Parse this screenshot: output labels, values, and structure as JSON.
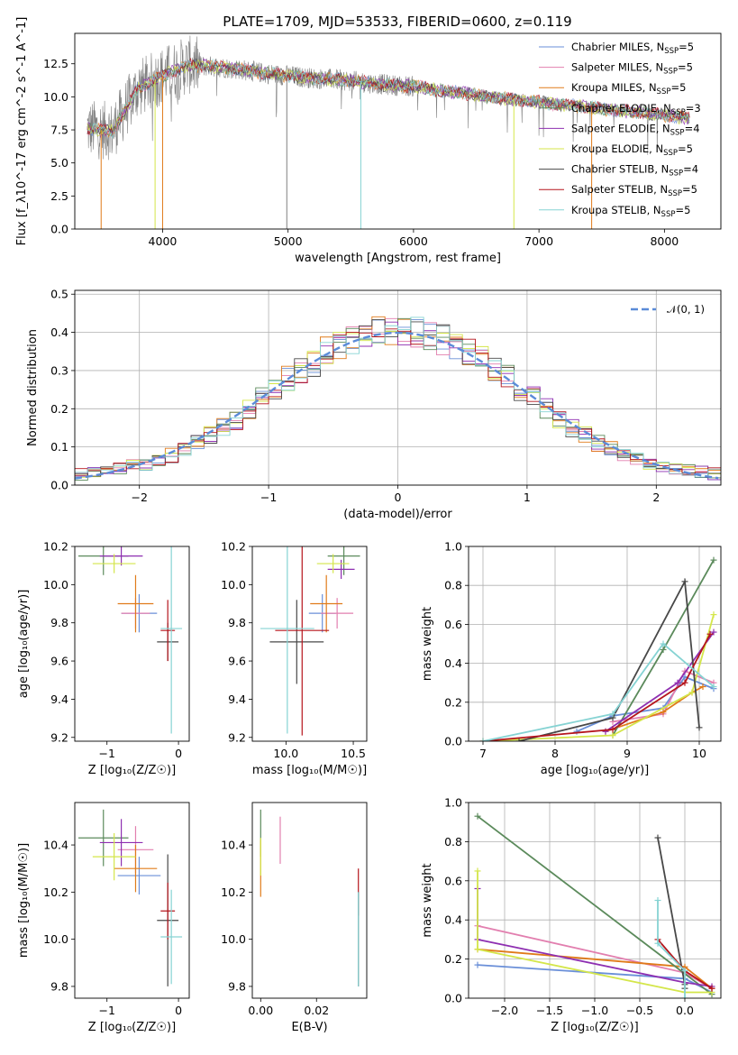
{
  "figure": {
    "title": "PLATE=1709, MJD=53533, FIBERID=0600, z=0.119"
  },
  "colors": {
    "Chabrier MILES": "#6a8fd8",
    "Salpeter MILES": "#e27faf",
    "Kroupa MILES": "#e07b1a",
    "Chabrier ELODIE": "#5b8a5b",
    "Salpeter ELODIE": "#8e2fb1",
    "Kroupa ELODIE": "#d4e64a",
    "Chabrier STELIB": "#484848",
    "Salpeter STELIB": "#b5151c",
    "Kroupa STELIB": "#86d3d3",
    "data": "#808080",
    "normal": "#5b8bd8"
  },
  "chart_data": [
    {
      "id": "spectrum",
      "type": "line",
      "xlabel": "wavelength [Angstrom, rest frame]",
      "ylabel": "Flux [f_λ10^-17 erg cm^-2 s^-1 A^-1]",
      "xlim": [
        3300,
        8450
      ],
      "ylim": [
        0,
        14.8
      ],
      "xticks": [
        4000,
        5000,
        6000,
        7000,
        8000
      ],
      "yticks": [
        0.0,
        2.5,
        5.0,
        7.5,
        10.0,
        12.5
      ],
      "legend_position": "top-right",
      "legend": [
        {
          "name": "Chabrier MILES",
          "nssp": "5"
        },
        {
          "name": "Salpeter MILES",
          "nssp": "5"
        },
        {
          "name": "Kroupa MILES",
          "nssp": "5"
        },
        {
          "name": "Chabrier ELODIE",
          "nssp": "3"
        },
        {
          "name": "Salpeter ELODIE",
          "nssp": "4"
        },
        {
          "name": "Kroupa ELODIE",
          "nssp": "5"
        },
        {
          "name": "Chabrier STELIB",
          "nssp": "4"
        },
        {
          "name": "Salpeter STELIB",
          "nssp": "5"
        },
        {
          "name": "Kroupa STELIB",
          "nssp": "5"
        }
      ],
      "continuum": {
        "x": [
          3400,
          3600,
          3800,
          4000,
          4200,
          4400,
          4600,
          4800,
          5000,
          5200,
          5400,
          5600,
          5800,
          6000,
          6200,
          6400,
          6600,
          6800,
          7000,
          7200,
          7400,
          7600,
          7800,
          8000,
          8200
        ],
        "y": [
          7.6,
          7.4,
          10.6,
          11.6,
          12.4,
          12.3,
          12.1,
          11.8,
          11.6,
          11.4,
          11.3,
          11.1,
          10.9,
          10.8,
          10.5,
          10.3,
          10.0,
          9.8,
          9.6,
          9.4,
          9.2,
          9.0,
          8.8,
          8.6,
          8.4
        ]
      },
      "drops": [
        {
          "x": 3510,
          "series": "Kroupa MILES"
        },
        {
          "x": 3940,
          "series": "Kroupa ELODIE"
        },
        {
          "x": 4000,
          "series": "Kroupa MILES"
        },
        {
          "x": 4990,
          "series": "data"
        },
        {
          "x": 5580,
          "series": "Kroupa STELIB"
        },
        {
          "x": 6800,
          "series": "Kroupa ELODIE"
        },
        {
          "x": 7420,
          "series": "Kroupa MILES"
        }
      ]
    },
    {
      "id": "residuals",
      "type": "line",
      "xlabel": "(data-model)/error",
      "ylabel": "Normed distribution",
      "xlim": [
        -2.5,
        2.5
      ],
      "ylim": [
        0,
        0.51
      ],
      "xticks": [
        -2,
        -1,
        0,
        1,
        2
      ],
      "yticks": [
        0.0,
        0.1,
        0.2,
        0.3,
        0.4,
        0.5
      ],
      "grid": true,
      "legend_position": "top-right",
      "legend": [
        "𝒩(0, 1)"
      ],
      "bin_width": 0.1,
      "bin_start": -2.5,
      "base_values": [
        0.028,
        0.033,
        0.041,
        0.046,
        0.05,
        0.056,
        0.065,
        0.078,
        0.093,
        0.11,
        0.13,
        0.15,
        0.17,
        0.2,
        0.23,
        0.25,
        0.28,
        0.3,
        0.32,
        0.35,
        0.37,
        0.38,
        0.39,
        0.4,
        0.4,
        0.4,
        0.4,
        0.39,
        0.38,
        0.37,
        0.35,
        0.33,
        0.3,
        0.28,
        0.25,
        0.23,
        0.2,
        0.17,
        0.15,
        0.13,
        0.11,
        0.094,
        0.079,
        0.066,
        0.057,
        0.05,
        0.045,
        0.04,
        0.034,
        0.03
      ]
    },
    {
      "id": "age-z",
      "type": "scatter",
      "xlabel": "Z [log₁₀(Z/Z☉)]",
      "ylabel": "age  [log₁₀(age/yr)]",
      "xlim": [
        -1.45,
        0.15
      ],
      "ylim": [
        9.18,
        10.2
      ],
      "xticks": [
        -1,
        0
      ],
      "yticks": [
        9.2,
        9.4,
        9.6,
        9.8,
        10.0,
        10.2
      ],
      "points": [
        {
          "series": "Chabrier MILES",
          "x": -0.55,
          "y": 9.85,
          "xerr": 0.25,
          "yerr": 0.1
        },
        {
          "series": "Salpeter MILES",
          "x": -0.6,
          "y": 9.85,
          "xerr": 0.2,
          "yerr": 0.08
        },
        {
          "series": "Kroupa MILES",
          "x": -0.6,
          "y": 9.9,
          "xerr": 0.25,
          "yerr": 0.15
        },
        {
          "series": "Chabrier ELODIE",
          "x": -1.05,
          "y": 10.15,
          "xerr": 0.35,
          "yerr": 0.1
        },
        {
          "series": "Salpeter ELODIE",
          "x": -0.8,
          "y": 10.15,
          "xerr": 0.3,
          "yerr": 0.05
        },
        {
          "series": "Kroupa ELODIE",
          "x": -0.9,
          "y": 10.11,
          "xerr": 0.3,
          "yerr": 0.05
        },
        {
          "series": "Chabrier STELIB",
          "x": -0.15,
          "y": 9.7,
          "xerr": 0.15,
          "yerr": 0.1
        },
        {
          "series": "Salpeter STELIB",
          "x": -0.15,
          "y": 9.76,
          "xerr": 0.1,
          "yerr": 0.16
        },
        {
          "series": "Kroupa STELIB",
          "x": -0.1,
          "y": 9.77,
          "xerr": 0.15,
          "yerr": 0.55
        }
      ]
    },
    {
      "id": "age-mass",
      "type": "scatter",
      "xlabel": "mass [log₁₀(M/M☉)]",
      "ylabel": "",
      "xlim": [
        9.75,
        10.6
      ],
      "ylim": [
        9.18,
        10.2
      ],
      "xticks": [
        10.0,
        10.5
      ],
      "yticks": [
        9.2,
        9.4,
        9.6,
        9.8,
        10.0,
        10.2
      ],
      "points": [
        {
          "series": "Chabrier MILES",
          "x": 10.27,
          "y": 9.85,
          "xerr": 0.1,
          "yerr": 0.1
        },
        {
          "series": "Salpeter MILES",
          "x": 10.38,
          "y": 9.85,
          "xerr": 0.12,
          "yerr": 0.08
        },
        {
          "series": "Kroupa MILES",
          "x": 10.3,
          "y": 9.9,
          "xerr": 0.12,
          "yerr": 0.15
        },
        {
          "series": "Chabrier ELODIE",
          "x": 10.43,
          "y": 10.15,
          "xerr": 0.12,
          "yerr": 0.1
        },
        {
          "series": "Salpeter ELODIE",
          "x": 10.41,
          "y": 10.08,
          "xerr": 0.1,
          "yerr": 0.05
        },
        {
          "series": "Kroupa ELODIE",
          "x": 10.35,
          "y": 10.11,
          "xerr": 0.12,
          "yerr": 0.05
        },
        {
          "series": "Chabrier STELIB",
          "x": 10.08,
          "y": 9.7,
          "xerr": 0.2,
          "yerr": 0.22
        },
        {
          "series": "Salpeter STELIB",
          "x": 10.12,
          "y": 9.76,
          "xerr": 0.2,
          "yerr": 0.55
        },
        {
          "series": "Kroupa STELIB",
          "x": 10.01,
          "y": 9.77,
          "xerr": 0.2,
          "yerr": 0.55
        }
      ]
    },
    {
      "id": "massweight-age",
      "type": "line",
      "xlabel": "age  [log₁₀(age/yr)]",
      "ylabel": "mass weight",
      "xlim": [
        6.8,
        10.3
      ],
      "ylim": [
        0,
        1.0
      ],
      "xticks": [
        7,
        8,
        9,
        10
      ],
      "yticks": [
        0.0,
        0.2,
        0.4,
        0.6,
        0.8,
        1.0
      ],
      "grid": true,
      "series": [
        {
          "name": "Chabrier MILES",
          "x": [
            8.3,
            8.8,
            9.5,
            9.8,
            10.2
          ],
          "y": [
            0.05,
            0.13,
            0.17,
            0.33,
            0.27
          ]
        },
        {
          "name": "Salpeter MILES",
          "x": [
            8.8,
            9.5,
            9.8,
            10.2
          ],
          "y": [
            0.1,
            0.14,
            0.36,
            0.3
          ]
        },
        {
          "name": "Kroupa MILES",
          "x": [
            8.7,
            9.5,
            9.9,
            10.05
          ],
          "y": [
            0.05,
            0.15,
            0.25,
            0.28
          ]
        },
        {
          "name": "Chabrier ELODIE",
          "x": [
            8.8,
            9.5,
            10.2
          ],
          "y": [
            0.03,
            0.47,
            0.93
          ]
        },
        {
          "name": "Salpeter ELODIE",
          "x": [
            8.7,
            9.7,
            10.2
          ],
          "y": [
            0.05,
            0.3,
            0.56
          ]
        },
        {
          "name": "Kroupa ELODIE",
          "x": [
            7.0,
            8.8,
            9.9,
            10.2
          ],
          "y": [
            0.0,
            0.03,
            0.25,
            0.65
          ]
        },
        {
          "name": "Chabrier STELIB",
          "x": [
            7.5,
            8.8,
            9.8,
            10.0
          ],
          "y": [
            0.0,
            0.12,
            0.82,
            0.07
          ]
        },
        {
          "name": "Salpeter STELIB",
          "x": [
            7.0,
            8.8,
            9.8,
            10.15
          ],
          "y": [
            0.0,
            0.06,
            0.3,
            0.55
          ]
        },
        {
          "name": "Kroupa STELIB",
          "x": [
            7.0,
            8.8,
            9.5,
            10.2
          ],
          "y": [
            0.0,
            0.14,
            0.5,
            0.28
          ]
        }
      ]
    },
    {
      "id": "mass-z",
      "type": "scatter",
      "xlabel": "Z [log₁₀(Z/Z☉)]",
      "ylabel": "mass [log₁₀(M/M☉)]",
      "xlim": [
        -1.45,
        0.15
      ],
      "ylim": [
        9.75,
        10.58
      ],
      "xticks": [
        -1,
        0
      ],
      "yticks": [
        9.8,
        10.0,
        10.2,
        10.4
      ],
      "points": [
        {
          "series": "Chabrier MILES",
          "x": -0.55,
          "y": 10.27,
          "xerr": 0.3,
          "yerr": 0.08
        },
        {
          "series": "Salpeter MILES",
          "x": -0.6,
          "y": 10.38,
          "xerr": 0.25,
          "yerr": 0.1
        },
        {
          "series": "Kroupa MILES",
          "x": -0.6,
          "y": 10.3,
          "xerr": 0.3,
          "yerr": 0.1
        },
        {
          "series": "Chabrier ELODIE",
          "x": -1.05,
          "y": 10.43,
          "xerr": 0.35,
          "yerr": 0.12
        },
        {
          "series": "Salpeter ELODIE",
          "x": -0.8,
          "y": 10.41,
          "xerr": 0.3,
          "yerr": 0.1
        },
        {
          "series": "Kroupa ELODIE",
          "x": -0.9,
          "y": 10.35,
          "xerr": 0.3,
          "yerr": 0.1
        },
        {
          "series": "Chabrier STELIB",
          "x": -0.15,
          "y": 10.08,
          "xerr": 0.15,
          "yerr": 0.28
        },
        {
          "series": "Salpeter STELIB",
          "x": -0.15,
          "y": 10.12,
          "xerr": 0.1,
          "yerr": 0.12
        },
        {
          "series": "Kroupa STELIB",
          "x": -0.1,
          "y": 10.01,
          "xerr": 0.15,
          "yerr": 0.2
        }
      ]
    },
    {
      "id": "mass-ebv",
      "type": "scatter",
      "xlabel": "E(B-V)",
      "ylabel": "",
      "xlim": [
        -0.003,
        0.038
      ],
      "ylim": [
        9.75,
        10.58
      ],
      "xticks": [
        0.0,
        0.02
      ],
      "yticks": [
        9.8,
        10.0,
        10.2,
        10.4
      ],
      "points": [
        {
          "series": "Chabrier ELODIE",
          "x": 0.0,
          "y": 10.45,
          "xerr": 0,
          "yerr": 0.1
        },
        {
          "series": "Kroupa MILES",
          "x": 0.0,
          "y": 10.3,
          "xerr": 0,
          "yerr": 0.12
        },
        {
          "series": "Kroupa ELODIE",
          "x": 0.0,
          "y": 10.35,
          "xerr": 0,
          "yerr": 0.08
        },
        {
          "series": "Salpeter MILES",
          "x": 0.007,
          "y": 10.42,
          "xerr": 0,
          "yerr": 0.1
        },
        {
          "series": "Salpeter STELIB",
          "x": 0.035,
          "y": 10.2,
          "xerr": 0,
          "yerr": 0.1
        },
        {
          "series": "Chabrier STELIB",
          "x": 0.035,
          "y": 10.0,
          "xerr": 0,
          "yerr": 0.2
        },
        {
          "series": "Kroupa STELIB",
          "x": 0.035,
          "y": 10.0,
          "xerr": 0,
          "yerr": 0.2
        }
      ]
    },
    {
      "id": "massweight-z",
      "type": "line",
      "xlabel": "Z [log₁₀(Z/Z☉)]",
      "ylabel": "mass weight",
      "xlim": [
        -2.4,
        0.4
      ],
      "ylim": [
        0,
        1.0
      ],
      "xticks": [
        -2.0,
        -1.5,
        -1.0,
        -0.5,
        0.0
      ],
      "yticks": [
        0.0,
        0.2,
        0.4,
        0.6,
        0.8,
        1.0
      ],
      "grid": true,
      "series": [
        {
          "name": "Chabrier MILES",
          "x": [
            -2.3,
            0.0,
            0.3
          ],
          "y": [
            0.17,
            0.1,
            0.03
          ]
        },
        {
          "name": "Salpeter MILES",
          "x": [
            -2.3,
            0.0,
            0.3
          ],
          "y": [
            0.37,
            0.13,
            0.05
          ]
        },
        {
          "name": "Kroupa MILES",
          "x": [
            -2.3,
            0.0,
            0.3
          ],
          "y": [
            0.25,
            0.16,
            0.05
          ]
        },
        {
          "name": "Chabrier ELODIE",
          "x": [
            -2.3,
            0.3
          ],
          "y": [
            0.93,
            0.02
          ]
        },
        {
          "name": "Salpeter ELODIE",
          "x": [
            -2.3,
            -2.3,
            0.0,
            0.3
          ],
          "y": [
            0.56,
            0.3,
            0.08,
            0.06
          ]
        },
        {
          "name": "Kroupa ELODIE",
          "x": [
            -2.3,
            -2.3,
            0.0,
            0.3
          ],
          "y": [
            0.65,
            0.25,
            0.03,
            0.03
          ]
        },
        {
          "name": "Chabrier STELIB",
          "x": [
            -0.3,
            0.0,
            0.0
          ],
          "y": [
            0.82,
            0.07,
            0.05
          ]
        },
        {
          "name": "Salpeter STELIB",
          "x": [
            -0.3,
            0.0,
            0.3
          ],
          "y": [
            0.3,
            0.14,
            0.05
          ]
        },
        {
          "name": "Kroupa STELIB",
          "x": [
            -0.3,
            -0.3,
            0.0,
            0.0
          ],
          "y": [
            0.5,
            0.28,
            0.14,
            0.0
          ]
        }
      ]
    }
  ]
}
